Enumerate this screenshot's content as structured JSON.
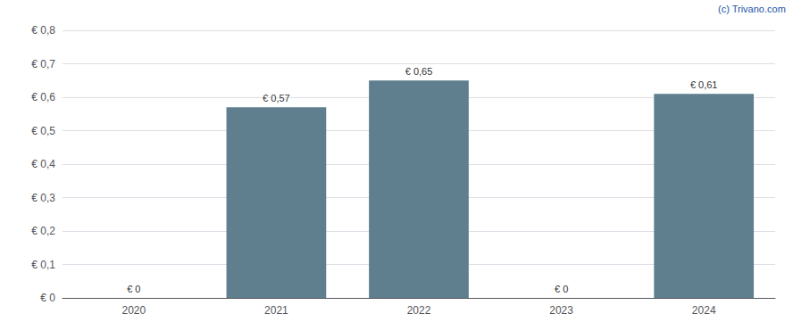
{
  "chart_data": {
    "type": "bar",
    "categories": [
      "2020",
      "2021",
      "2022",
      "2023",
      "2024"
    ],
    "values": [
      0,
      0.57,
      0.65,
      0,
      0.61
    ],
    "value_labels": [
      "€ 0",
      "€ 0,57",
      "€ 0,65",
      "€ 0",
      "€ 0,61"
    ],
    "data_labels": true,
    "color": "#5f7f8e",
    "ylim": [
      0,
      0.8
    ],
    "yticks": [
      {
        "value": 0,
        "label": "€ 0"
      },
      {
        "value": 0.1,
        "label": "€ 0,1"
      },
      {
        "value": 0.2,
        "label": "€ 0,2"
      },
      {
        "value": 0.3,
        "label": "€ 0,3"
      },
      {
        "value": 0.4,
        "label": "€ 0,4"
      },
      {
        "value": 0.5,
        "label": "€ 0,5"
      },
      {
        "value": 0.6,
        "label": "€ 0,6"
      },
      {
        "value": 0.7,
        "label": "€ 0,7"
      },
      {
        "value": 0.8,
        "label": "€ 0,8"
      }
    ],
    "grid": true,
    "annotations": [
      "(c) Trivano.com"
    ]
  }
}
